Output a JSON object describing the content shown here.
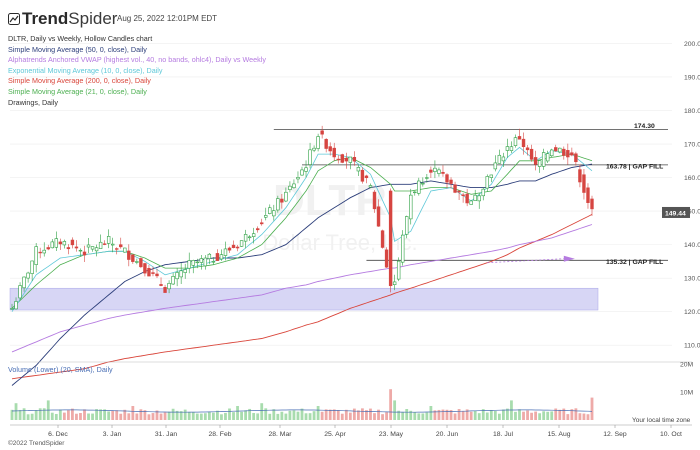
{
  "header": {
    "logo_trend": "Trend",
    "logo_spider": "Spider",
    "date": "Aug 25, 2022 12:01PM EDT"
  },
  "legend": [
    {
      "text": "DLTR, Daily vs Weekly, Hollow Candles chart",
      "color": "#333333"
    },
    {
      "text": "Simple Moving Average (50, 0, close), Daily",
      "color": "#2c3e7a"
    },
    {
      "text": "Alphatrends Anchored VWAP (highest vol., 40, no bands, ohlc4), Daily vs Weekly",
      "color": "#b57be0"
    },
    {
      "text": "Exponential Moving Average (10, 0, close), Daily",
      "color": "#5ec8d8"
    },
    {
      "text": "Simple Moving Average (200, 0, close), Daily",
      "color": "#d9453a"
    },
    {
      "text": "Simple Moving Average (21, 0, close), Daily",
      "color": "#4caf50"
    },
    {
      "text": "Drawings, Daily",
      "color": "#333333"
    }
  ],
  "watermark": {
    "ticker": "DLTR",
    "company": "Dollar Tree, Inc."
  },
  "volume_label": "Volume (Lower) (20, SMA), Daily",
  "copyright": "©2022 TrendSpider",
  "timezone_label": "Your local time zone",
  "colors": {
    "up": "#2ea043",
    "down": "#d64541",
    "sma50": "#2c3e7a",
    "sma21": "#4caf50",
    "ema10": "#5ec8d8",
    "sma200": "#d9453a",
    "vwap": "#b57be0",
    "zone": "#c9c8f2"
  },
  "chart_data": {
    "type": "candlestick",
    "title": "DLTR, Daily vs Weekly, Hollow Candles chart",
    "ylim": [
      105,
      204
    ],
    "y_ticks": [
      110,
      120,
      130,
      140,
      150,
      160,
      170,
      180,
      190,
      200
    ],
    "x_tick_labels": [
      "6. Dec",
      "3. Jan",
      "31. Jan",
      "28. Feb",
      "28. Mar",
      "25. Apr",
      "23. May",
      "20. Jun",
      "18. Jul",
      "15. Aug",
      "12. Sep",
      "10. Oct"
    ],
    "last_price": "149.44",
    "levels": [
      {
        "label": "174.30",
        "value": 174.3,
        "kind": "resistance"
      },
      {
        "label": "163.78 | GAP FILL",
        "value": 163.78,
        "kind": "gap"
      },
      {
        "label": "135.32 | GAP FILL",
        "value": 135.32,
        "kind": "gap"
      }
    ],
    "zone": {
      "from": 120.5,
      "to": 127.0
    },
    "anchors": [
      {
        "x": 0,
        "close": 121,
        "sma50": 98,
        "sma21": 121,
        "ema10": 120,
        "sma200": 100,
        "vwap": 108
      },
      {
        "x": 6,
        "close": 138,
        "sma50": 104,
        "sma21": 128,
        "ema10": 131,
        "sma200": 101,
        "vwap": 111
      },
      {
        "x": 12,
        "close": 141,
        "sma50": 112,
        "sma21": 134,
        "ema10": 136,
        "sma200": 102,
        "vwap": 114
      },
      {
        "x": 18,
        "close": 138,
        "sma50": 119,
        "sma21": 137,
        "ema10": 137,
        "sma200": 103,
        "vwap": 116
      },
      {
        "x": 24,
        "close": 141,
        "sma50": 125,
        "sma21": 138,
        "ema10": 138,
        "sma200": 105,
        "vwap": 118
      },
      {
        "x": 28,
        "close": 138,
        "sma50": 129,
        "sma21": 138,
        "ema10": 138,
        "sma200": 106,
        "vwap": 119
      },
      {
        "x": 33,
        "close": 133,
        "sma50": 132,
        "sma21": 136,
        "ema10": 135,
        "sma200": 107,
        "vwap": 120
      },
      {
        "x": 38,
        "close": 127,
        "sma50": 134,
        "sma21": 133,
        "ema10": 131,
        "sma200": 108,
        "vwap": 121
      },
      {
        "x": 44,
        "close": 134,
        "sma50": 135,
        "sma21": 133,
        "ema10": 133,
        "sma200": 109,
        "vwap": 122
      },
      {
        "x": 50,
        "close": 136,
        "sma50": 136,
        "sma21": 134,
        "ema10": 135,
        "sma200": 110,
        "vwap": 123
      },
      {
        "x": 56,
        "close": 140,
        "sma50": 136,
        "sma21": 136,
        "ema10": 137,
        "sma200": 111,
        "vwap": 124
      },
      {
        "x": 62,
        "close": 147,
        "sma50": 137,
        "sma21": 140,
        "ema10": 143,
        "sma200": 112,
        "vwap": 125
      },
      {
        "x": 68,
        "close": 155,
        "sma50": 140,
        "sma21": 148,
        "ema10": 151,
        "sma200": 114,
        "vwap": 127
      },
      {
        "x": 73,
        "close": 164,
        "sma50": 145,
        "sma21": 156,
        "ema10": 160,
        "sma200": 116,
        "vwap": 128
      },
      {
        "x": 76,
        "close": 173,
        "sma50": 148,
        "sma21": 162,
        "ema10": 167,
        "sma200": 117,
        "vwap": 129
      },
      {
        "x": 80,
        "close": 167,
        "sma50": 151,
        "sma21": 165,
        "ema10": 167,
        "sma200": 119,
        "vwap": 130
      },
      {
        "x": 84,
        "close": 165,
        "sma50": 154,
        "sma21": 166,
        "ema10": 166,
        "sma200": 121,
        "vwap": 131
      },
      {
        "x": 89,
        "close": 157,
        "sma50": 157,
        "sma21": 163,
        "ema10": 161,
        "sma200": 123,
        "vwap": 132
      },
      {
        "x": 94,
        "close": 128,
        "sma50": 158,
        "sma21": 158,
        "ema10": 148,
        "sma200": 125,
        "vwap": 133
      },
      {
        "x": 95,
        "close": 129,
        "sma50": 158,
        "sma21": 156,
        "ema10": 141,
        "sma200": 125.5,
        "vwap": 133
      },
      {
        "x": 99,
        "close": 155,
        "sma50": 158,
        "sma21": 156,
        "ema10": 144,
        "sma200": 127,
        "vwap": 134
      },
      {
        "x": 104,
        "close": 163,
        "sma50": 159,
        "sma21": 157,
        "ema10": 156,
        "sma200": 129,
        "vwap": 135
      },
      {
        "x": 109,
        "close": 158,
        "sma50": 158,
        "sma21": 157,
        "ema10": 157,
        "sma200": 131,
        "vwap": 136
      },
      {
        "x": 114,
        "close": 152,
        "sma50": 157,
        "sma21": 155,
        "ema10": 153,
        "sma200": 133,
        "vwap": 137
      },
      {
        "x": 119,
        "close": 162,
        "sma50": 157,
        "sma21": 156,
        "ema10": 158,
        "sma200": 135,
        "vwap": 138
      },
      {
        "x": 123,
        "close": 169,
        "sma50": 158,
        "sma21": 161,
        "ema10": 166,
        "sma200": 137,
        "vwap": 139
      },
      {
        "x": 126,
        "close": 172,
        "sma50": 159,
        "sma21": 165,
        "ema10": 169,
        "sma200": 139,
        "vwap": 140
      },
      {
        "x": 130,
        "close": 163,
        "sma50": 159,
        "sma21": 165,
        "ema10": 165,
        "sma200": 141,
        "vwap": 141
      },
      {
        "x": 134,
        "close": 169,
        "sma50": 161,
        "sma21": 166,
        "ema10": 168,
        "sma200": 143,
        "vwap": 142
      },
      {
        "x": 139,
        "close": 167,
        "sma50": 163,
        "sma21": 167,
        "ema10": 167,
        "sma200": 146,
        "vwap": 144
      },
      {
        "x": 144,
        "close": 149.44,
        "sma50": 164,
        "sma21": 165,
        "ema10": 162,
        "sma200": 149,
        "vwap": 146
      }
    ],
    "total_bars": 145,
    "series": [
      {
        "name": "Simple Moving Average (50, 0, close), Daily",
        "key": "sma50"
      },
      {
        "name": "Simple Moving Average (21, 0, close), Daily",
        "key": "sma21"
      },
      {
        "name": "Exponential Moving Average (10, 0, close), Daily",
        "key": "ema10"
      },
      {
        "name": "Simple Moving Average (200, 0, close), Daily",
        "key": "sma200"
      },
      {
        "name": "Alphatrends Anchored VWAP (highest vol., 40, no bands, ohlc4), Daily vs Weekly",
        "key": "vwap"
      }
    ],
    "volume": {
      "y_ticks": [
        "20M",
        "10M"
      ],
      "y_tick_values": [
        20,
        10
      ],
      "ylim": [
        0,
        20
      ],
      "spikes": [
        {
          "x": 1,
          "value": 6
        },
        {
          "x": 9,
          "value": 7
        },
        {
          "x": 30,
          "value": 5
        },
        {
          "x": 56,
          "value": 5
        },
        {
          "x": 62,
          "value": 6
        },
        {
          "x": 76,
          "value": 5
        },
        {
          "x": 94,
          "value": 11
        },
        {
          "x": 95,
          "value": 7
        },
        {
          "x": 104,
          "value": 5
        },
        {
          "x": 124,
          "value": 7
        },
        {
          "x": 144,
          "value": 8
        }
      ],
      "baseline": 2.8
    }
  }
}
